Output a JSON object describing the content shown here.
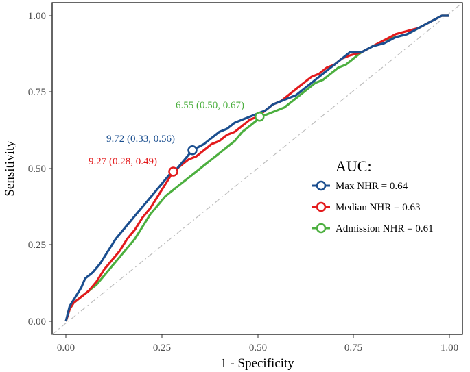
{
  "chart_data": {
    "type": "line",
    "xlabel": "1 - Specificity",
    "ylabel": "Sensitivity",
    "xlim": [
      0,
      1
    ],
    "ylim": [
      0,
      1
    ],
    "x_ticks": [
      "0.00",
      "0.25",
      "0.50",
      "0.75",
      "1.00"
    ],
    "y_ticks": [
      "0.00",
      "0.25",
      "0.50",
      "0.75",
      "1.00"
    ],
    "grid": false,
    "reference_line": "diagonal, dash-dot, gray",
    "legend": {
      "title": "AUC:",
      "placement": "right"
    },
    "series": [
      {
        "name": "Max NHR = 0.64",
        "color": "#1a4e8f",
        "points": [
          [
            0,
            0
          ],
          [
            0.01,
            0.05
          ],
          [
            0.02,
            0.07
          ],
          [
            0.03,
            0.09
          ],
          [
            0.04,
            0.11
          ],
          [
            0.05,
            0.14
          ],
          [
            0.07,
            0.16
          ],
          [
            0.09,
            0.19
          ],
          [
            0.11,
            0.23
          ],
          [
            0.13,
            0.27
          ],
          [
            0.15,
            0.3
          ],
          [
            0.17,
            0.33
          ],
          [
            0.19,
            0.36
          ],
          [
            0.21,
            0.39
          ],
          [
            0.23,
            0.42
          ],
          [
            0.25,
            0.45
          ],
          [
            0.27,
            0.48
          ],
          [
            0.29,
            0.5
          ],
          [
            0.31,
            0.53
          ],
          [
            0.33,
            0.56
          ],
          [
            0.36,
            0.58
          ],
          [
            0.38,
            0.6
          ],
          [
            0.4,
            0.62
          ],
          [
            0.42,
            0.63
          ],
          [
            0.44,
            0.65
          ],
          [
            0.46,
            0.66
          ],
          [
            0.48,
            0.67
          ],
          [
            0.5,
            0.68
          ],
          [
            0.52,
            0.69
          ],
          [
            0.54,
            0.71
          ],
          [
            0.56,
            0.72
          ],
          [
            0.58,
            0.73
          ],
          [
            0.6,
            0.74
          ],
          [
            0.62,
            0.76
          ],
          [
            0.64,
            0.78
          ],
          [
            0.66,
            0.8
          ],
          [
            0.68,
            0.82
          ],
          [
            0.7,
            0.84
          ],
          [
            0.72,
            0.86
          ],
          [
            0.74,
            0.88
          ],
          [
            0.77,
            0.88
          ],
          [
            0.8,
            0.9
          ],
          [
            0.83,
            0.91
          ],
          [
            0.86,
            0.93
          ],
          [
            0.89,
            0.94
          ],
          [
            0.92,
            0.96
          ],
          [
            0.95,
            0.98
          ],
          [
            0.98,
            1.0
          ],
          [
            1.0,
            1.0
          ]
        ]
      },
      {
        "name": "Median NHR = 0.63",
        "color": "#e31a1c",
        "points": [
          [
            0,
            0
          ],
          [
            0.01,
            0.04
          ],
          [
            0.02,
            0.06
          ],
          [
            0.04,
            0.08
          ],
          [
            0.06,
            0.1
          ],
          [
            0.08,
            0.13
          ],
          [
            0.1,
            0.17
          ],
          [
            0.12,
            0.2
          ],
          [
            0.14,
            0.23
          ],
          [
            0.16,
            0.27
          ],
          [
            0.18,
            0.3
          ],
          [
            0.2,
            0.34
          ],
          [
            0.22,
            0.37
          ],
          [
            0.24,
            0.41
          ],
          [
            0.26,
            0.45
          ],
          [
            0.28,
            0.49
          ],
          [
            0.3,
            0.51
          ],
          [
            0.32,
            0.53
          ],
          [
            0.34,
            0.54
          ],
          [
            0.36,
            0.56
          ],
          [
            0.38,
            0.58
          ],
          [
            0.4,
            0.59
          ],
          [
            0.42,
            0.61
          ],
          [
            0.44,
            0.62
          ],
          [
            0.46,
            0.64
          ],
          [
            0.48,
            0.66
          ],
          [
            0.5,
            0.67
          ],
          [
            0.52,
            0.69
          ],
          [
            0.54,
            0.71
          ],
          [
            0.56,
            0.72
          ],
          [
            0.58,
            0.74
          ],
          [
            0.6,
            0.76
          ],
          [
            0.62,
            0.78
          ],
          [
            0.64,
            0.8
          ],
          [
            0.66,
            0.81
          ],
          [
            0.68,
            0.83
          ],
          [
            0.7,
            0.84
          ],
          [
            0.72,
            0.86
          ],
          [
            0.74,
            0.87
          ],
          [
            0.77,
            0.88
          ],
          [
            0.8,
            0.9
          ],
          [
            0.83,
            0.92
          ],
          [
            0.86,
            0.94
          ],
          [
            0.89,
            0.95
          ],
          [
            0.92,
            0.96
          ],
          [
            0.95,
            0.98
          ],
          [
            0.98,
            1.0
          ],
          [
            1.0,
            1.0
          ]
        ]
      },
      {
        "name": "Admission NHR = 0.61",
        "color": "#4caf3f",
        "points": [
          [
            0,
            0
          ],
          [
            0.01,
            0.04
          ],
          [
            0.02,
            0.06
          ],
          [
            0.04,
            0.08
          ],
          [
            0.06,
            0.1
          ],
          [
            0.08,
            0.12
          ],
          [
            0.1,
            0.15
          ],
          [
            0.12,
            0.18
          ],
          [
            0.14,
            0.21
          ],
          [
            0.16,
            0.24
          ],
          [
            0.18,
            0.27
          ],
          [
            0.2,
            0.31
          ],
          [
            0.22,
            0.35
          ],
          [
            0.24,
            0.38
          ],
          [
            0.26,
            0.41
          ],
          [
            0.28,
            0.43
          ],
          [
            0.3,
            0.45
          ],
          [
            0.32,
            0.47
          ],
          [
            0.34,
            0.49
          ],
          [
            0.36,
            0.51
          ],
          [
            0.38,
            0.53
          ],
          [
            0.4,
            0.55
          ],
          [
            0.42,
            0.57
          ],
          [
            0.44,
            0.59
          ],
          [
            0.46,
            0.62
          ],
          [
            0.48,
            0.64
          ],
          [
            0.5,
            0.66
          ],
          [
            0.51,
            0.67
          ],
          [
            0.53,
            0.68
          ],
          [
            0.55,
            0.69
          ],
          [
            0.57,
            0.7
          ],
          [
            0.59,
            0.72
          ],
          [
            0.61,
            0.74
          ],
          [
            0.63,
            0.76
          ],
          [
            0.65,
            0.78
          ],
          [
            0.67,
            0.79
          ],
          [
            0.69,
            0.81
          ],
          [
            0.71,
            0.83
          ],
          [
            0.73,
            0.84
          ],
          [
            0.75,
            0.86
          ],
          [
            0.77,
            0.88
          ],
          [
            0.8,
            0.9
          ],
          [
            0.83,
            0.92
          ],
          [
            0.86,
            0.93
          ],
          [
            0.89,
            0.94
          ],
          [
            0.92,
            0.96
          ],
          [
            0.95,
            0.98
          ],
          [
            0.98,
            1.0
          ],
          [
            1.0,
            1.0
          ]
        ]
      }
    ],
    "cutpoints": [
      {
        "label": "9.72 (0.33, 0.56)",
        "x": 0.33,
        "y": 0.56,
        "color": "#1a4e8f"
      },
      {
        "label": "9.27 (0.28, 0.49)",
        "x": 0.28,
        "y": 0.49,
        "color": "#e31a1c"
      },
      {
        "label": "6.55 (0.50, 0.67)",
        "x": 0.505,
        "y": 0.67,
        "color": "#4caf3f"
      }
    ]
  }
}
